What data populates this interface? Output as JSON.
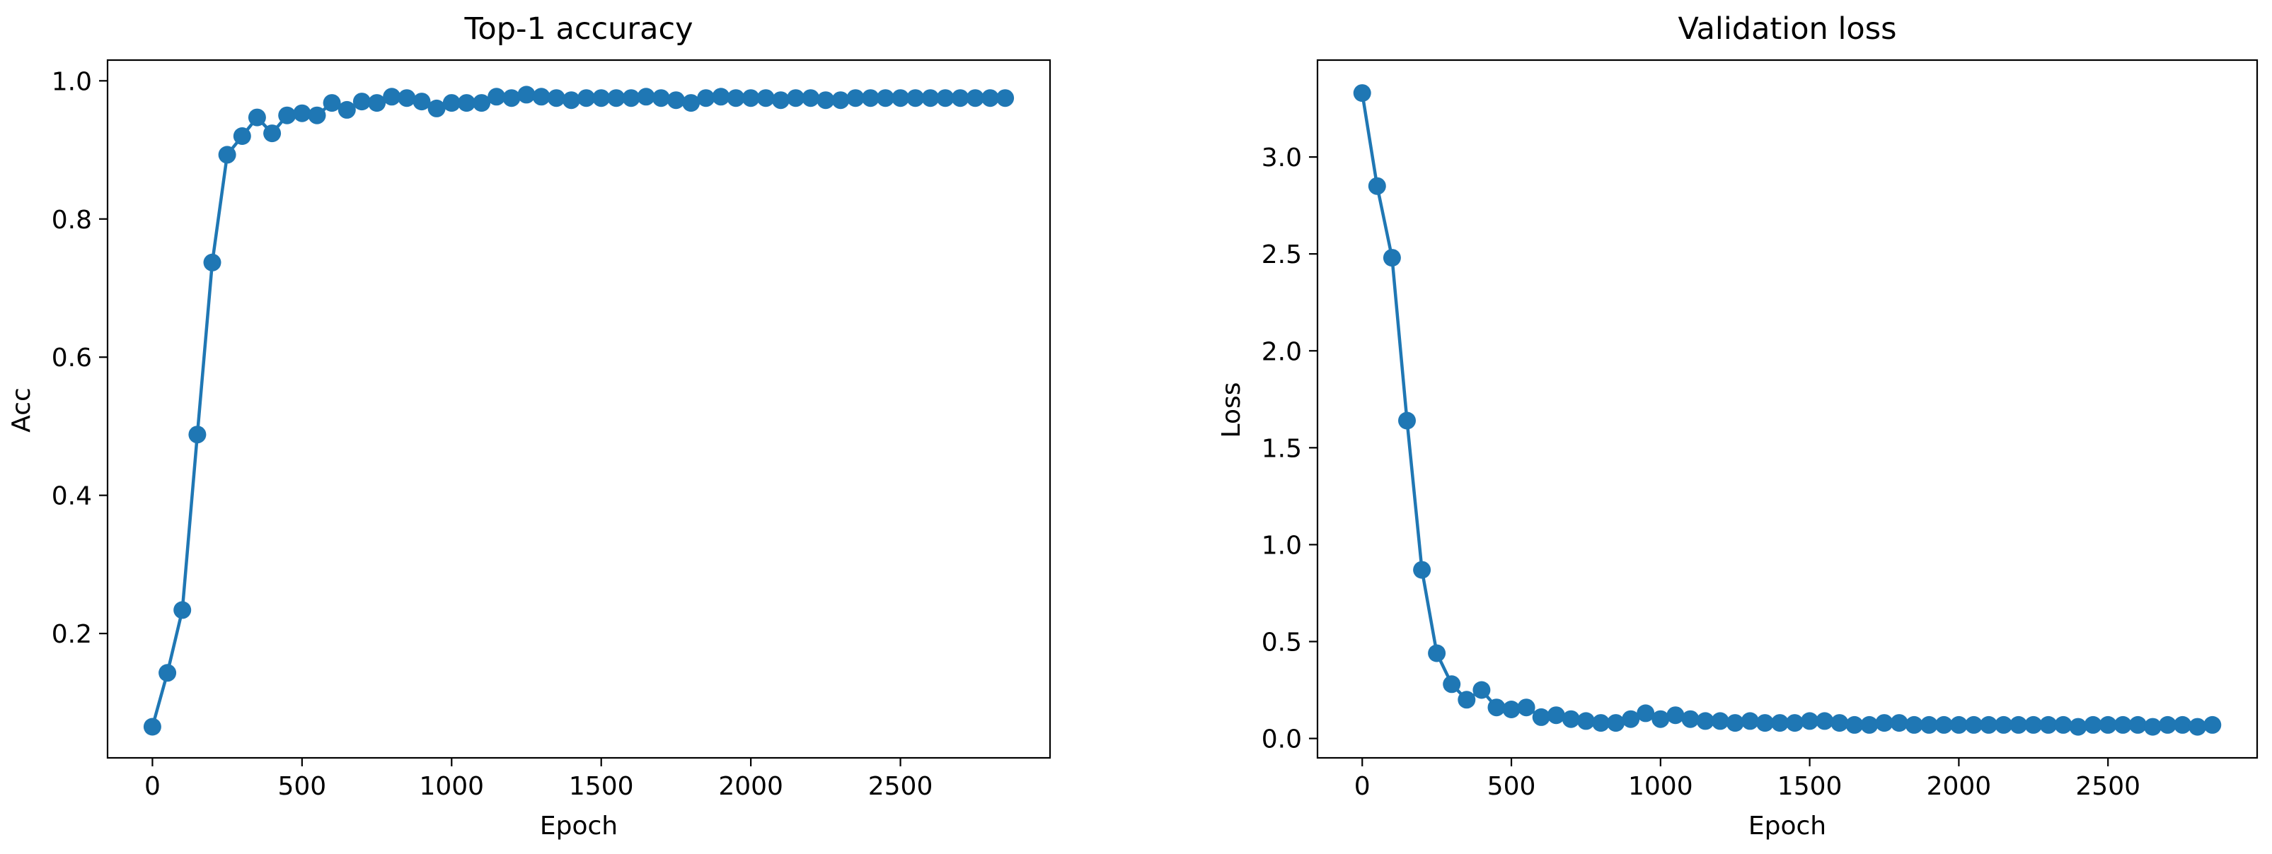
{
  "chart_data": [
    {
      "type": "line",
      "title": "Top-1 accuracy",
      "xlabel": "Epoch",
      "ylabel": "Acc",
      "xlim": [
        -150,
        3000
      ],
      "ylim": [
        0.02,
        1.03
      ],
      "xticks": [
        0,
        500,
        1000,
        1500,
        2000,
        2500
      ],
      "yticks": [
        0.2,
        0.4,
        0.6,
        0.8,
        1.0
      ],
      "ytick_labels": [
        "0.2",
        "0.4",
        "0.6",
        "0.8",
        "1.0"
      ],
      "grid": false,
      "markers": "circle",
      "color": "#1f77b4",
      "series": [
        {
          "x": [
            0,
            50,
            100,
            150,
            200,
            250,
            300,
            350,
            400,
            450,
            500,
            550,
            600,
            650,
            700,
            750,
            800,
            850,
            900,
            950,
            1000,
            1050,
            1100,
            1150,
            1200,
            1250,
            1300,
            1350,
            1400,
            1450,
            1500,
            1550,
            1600,
            1650,
            1700,
            1750,
            1800,
            1850,
            1900,
            1950,
            2000,
            2050,
            2100,
            2150,
            2200,
            2250,
            2300,
            2350,
            2400,
            2450,
            2500,
            2550,
            2600,
            2650,
            2700,
            2750,
            2800,
            2850
          ],
          "values": [
            0.065,
            0.143,
            0.234,
            0.488,
            0.737,
            0.893,
            0.92,
            0.947,
            0.924,
            0.95,
            0.953,
            0.95,
            0.968,
            0.958,
            0.97,
            0.968,
            0.977,
            0.975,
            0.97,
            0.96,
            0.968,
            0.968,
            0.968,
            0.977,
            0.975,
            0.98,
            0.977,
            0.975,
            0.972,
            0.975,
            0.975,
            0.975,
            0.975,
            0.977,
            0.975,
            0.972,
            0.968,
            0.975,
            0.977,
            0.975,
            0.975,
            0.975,
            0.972,
            0.975,
            0.975,
            0.972,
            0.972,
            0.975,
            0.975,
            0.975,
            0.975,
            0.975,
            0.975,
            0.975,
            0.975,
            0.975,
            0.975,
            0.975
          ]
        }
      ]
    },
    {
      "type": "line",
      "title": "Validation loss",
      "xlabel": "Epoch",
      "ylabel": "Loss",
      "xlim": [
        -150,
        3000
      ],
      "ylim": [
        -0.1,
        3.5
      ],
      "xticks": [
        0,
        500,
        1000,
        1500,
        2000,
        2500
      ],
      "yticks": [
        0.0,
        0.5,
        1.0,
        1.5,
        2.0,
        2.5,
        3.0
      ],
      "ytick_labels": [
        "0.0",
        "0.5",
        "1.0",
        "1.5",
        "2.0",
        "2.5",
        "3.0"
      ],
      "grid": false,
      "markers": "circle",
      "color": "#1f77b4",
      "series": [
        {
          "x": [
            0,
            50,
            100,
            150,
            200,
            250,
            300,
            350,
            400,
            450,
            500,
            550,
            600,
            650,
            700,
            750,
            800,
            850,
            900,
            950,
            1000,
            1050,
            1100,
            1150,
            1200,
            1250,
            1300,
            1350,
            1400,
            1450,
            1500,
            1550,
            1600,
            1650,
            1700,
            1750,
            1800,
            1850,
            1900,
            1950,
            2000,
            2050,
            2100,
            2150,
            2200,
            2250,
            2300,
            2350,
            2400,
            2450,
            2500,
            2550,
            2600,
            2650,
            2700,
            2750,
            2800,
            2850
          ],
          "values": [
            3.33,
            2.85,
            2.48,
            1.64,
            0.87,
            0.44,
            0.28,
            0.2,
            0.25,
            0.16,
            0.15,
            0.16,
            0.11,
            0.12,
            0.1,
            0.09,
            0.08,
            0.08,
            0.1,
            0.13,
            0.1,
            0.12,
            0.1,
            0.09,
            0.09,
            0.08,
            0.09,
            0.08,
            0.08,
            0.08,
            0.09,
            0.09,
            0.08,
            0.07,
            0.07,
            0.08,
            0.08,
            0.07,
            0.07,
            0.07,
            0.07,
            0.07,
            0.07,
            0.07,
            0.07,
            0.07,
            0.07,
            0.07,
            0.06,
            0.07,
            0.07,
            0.07,
            0.07,
            0.06,
            0.07,
            0.07,
            0.06,
            0.07
          ]
        }
      ]
    }
  ]
}
